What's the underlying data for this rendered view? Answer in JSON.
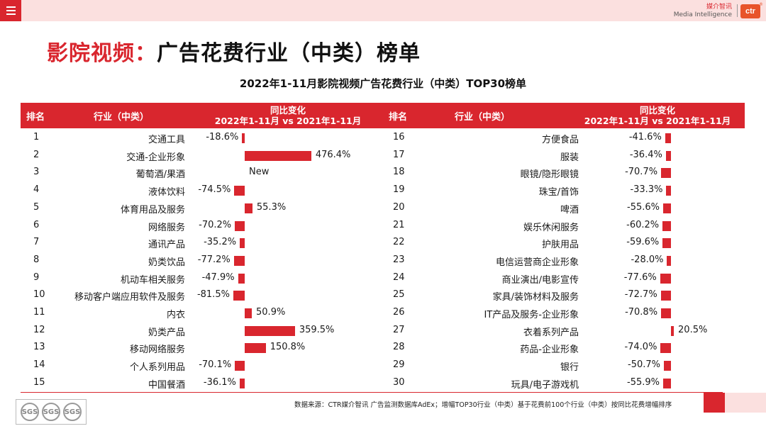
{
  "header_bar": {
    "menu_icon": "menu-icon"
  },
  "brand": {
    "name_cn": "媒介智讯",
    "name_en": "Media Intelligence",
    "logo_text": "ctr",
    "logo_mark": "®"
  },
  "title": {
    "main": "影院视频：",
    "rest": "广告花费行业（中类）榜单"
  },
  "chart_data": {
    "type": "bar",
    "title": "2022年1-11月影院视频广告花费行业（中类）TOP30榜单",
    "columns": {
      "rank": "排名",
      "industry": "行业（中类）",
      "change_line1": "同比变化",
      "change_line2": "2022年1-11月 vs 2021年1-11月"
    },
    "unit": "%",
    "rows": [
      {
        "rank": "1",
        "industry": "交通工具",
        "value": -18.6,
        "label": "-18.6%"
      },
      {
        "rank": "2",
        "industry": "交通-企业形象",
        "value": 476.4,
        "label": "476.4%"
      },
      {
        "rank": "3",
        "industry": "葡萄酒/果酒",
        "value": null,
        "label": "New"
      },
      {
        "rank": "4",
        "industry": "液体饮料",
        "value": -74.5,
        "label": "-74.5%"
      },
      {
        "rank": "5",
        "industry": "体育用品及服务",
        "value": 55.3,
        "label": "55.3%"
      },
      {
        "rank": "6",
        "industry": "网络服务",
        "value": -70.2,
        "label": "-70.2%"
      },
      {
        "rank": "7",
        "industry": "通讯产品",
        "value": -35.2,
        "label": "-35.2%"
      },
      {
        "rank": "8",
        "industry": "奶类饮品",
        "value": -77.2,
        "label": "-77.2%"
      },
      {
        "rank": "9",
        "industry": "机动车相关服务",
        "value": -47.9,
        "label": "-47.9%"
      },
      {
        "rank": "10",
        "industry": "移动客户端应用软件及服务",
        "value": -81.5,
        "label": "-81.5%"
      },
      {
        "rank": "11",
        "industry": "内衣",
        "value": 50.9,
        "label": "50.9%"
      },
      {
        "rank": "12",
        "industry": "奶类产品",
        "value": 359.5,
        "label": "359.5%"
      },
      {
        "rank": "13",
        "industry": "移动网络服务",
        "value": 150.8,
        "label": "150.8%"
      },
      {
        "rank": "14",
        "industry": "个人系列用品",
        "value": -70.1,
        "label": "-70.1%"
      },
      {
        "rank": "15",
        "industry": "中国餐酒",
        "value": -36.1,
        "label": "-36.1%"
      },
      {
        "rank": "16",
        "industry": "方便食品",
        "value": -41.6,
        "label": "-41.6%"
      },
      {
        "rank": "17",
        "industry": "服装",
        "value": -36.4,
        "label": "-36.4%"
      },
      {
        "rank": "18",
        "industry": "眼镜/隐形眼镜",
        "value": -70.7,
        "label": "-70.7%"
      },
      {
        "rank": "19",
        "industry": "珠宝/首饰",
        "value": -33.3,
        "label": "-33.3%"
      },
      {
        "rank": "20",
        "industry": "啤酒",
        "value": -55.6,
        "label": "-55.6%"
      },
      {
        "rank": "21",
        "industry": "娱乐休闲服务",
        "value": -60.2,
        "label": "-60.2%"
      },
      {
        "rank": "22",
        "industry": "护肤用品",
        "value": -59.6,
        "label": "-59.6%"
      },
      {
        "rank": "23",
        "industry": "电信运营商企业形象",
        "value": -28.0,
        "label": "-28.0%"
      },
      {
        "rank": "24",
        "industry": "商业演出/电影宣传",
        "value": -77.6,
        "label": "-77.6%"
      },
      {
        "rank": "25",
        "industry": "家具/装饰材料及服务",
        "value": -72.7,
        "label": "-72.7%"
      },
      {
        "rank": "26",
        "industry": "IT产品及服务-企业形象",
        "value": -70.8,
        "label": "-70.8%"
      },
      {
        "rank": "27",
        "industry": "衣着系列产品",
        "value": 20.5,
        "label": "20.5%"
      },
      {
        "rank": "28",
        "industry": "药品-企业形象",
        "value": -74.0,
        "label": "-74.0%"
      },
      {
        "rank": "29",
        "industry": "银行",
        "value": -50.7,
        "label": "-50.7%"
      },
      {
        "rank": "30",
        "industry": "玩具/电子游戏机",
        "value": -55.9,
        "label": "-55.9%"
      }
    ]
  },
  "footer": {
    "note": "数据来源：CTR媒介智讯 广告监测数据库AdEx；增幅TOP30行业（中类）基于花费前100个行业（中类）按同比花费增幅排序",
    "certs": [
      "SGS",
      "SGS",
      "SGS"
    ]
  }
}
